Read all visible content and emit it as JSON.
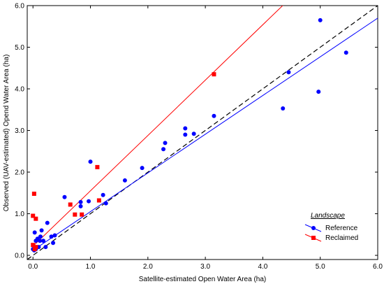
{
  "chart_data": {
    "type": "scatter",
    "xlabel": "Satellite-estimated Open Water Area (ha)",
    "ylabel": "Observed (UAV-estimated) Opend Water Area (ha)",
    "xlim": [
      -0.1,
      6.0
    ],
    "ylim": [
      -0.1,
      6.0
    ],
    "x_ticks": [
      "0.0",
      "1.0",
      "2.0",
      "3.0",
      "4.0",
      "5.0",
      "6.0"
    ],
    "y_ticks": [
      "0.0",
      "1.0",
      "2.0",
      "3.0",
      "4.0",
      "5.0",
      "6.0"
    ],
    "x_tick_values": [
      0,
      1,
      2,
      3,
      4,
      5,
      6
    ],
    "y_tick_values": [
      0,
      1,
      2,
      3,
      4,
      5,
      6
    ],
    "legend": {
      "title": "Landscape",
      "position": "bottom-right"
    },
    "series": [
      {
        "name": "Reference",
        "color": "#0000ff",
        "marker": "circle",
        "fit": {
          "intercept": 0.12,
          "slope": 0.93
        },
        "points": [
          [
            0.0,
            0.15
          ],
          [
            0.02,
            0.12
          ],
          [
            0.03,
            0.2
          ],
          [
            0.03,
            0.55
          ],
          [
            0.05,
            0.35
          ],
          [
            0.05,
            0.15
          ],
          [
            0.08,
            0.4
          ],
          [
            0.1,
            0.2
          ],
          [
            0.12,
            0.35
          ],
          [
            0.13,
            0.45
          ],
          [
            0.15,
            0.6
          ],
          [
            0.18,
            0.35
          ],
          [
            0.22,
            0.2
          ],
          [
            0.25,
            0.78
          ],
          [
            0.32,
            0.45
          ],
          [
            0.35,
            0.3
          ],
          [
            0.38,
            0.48
          ],
          [
            0.55,
            1.4
          ],
          [
            0.83,
            1.28
          ],
          [
            0.83,
            1.18
          ],
          [
            0.97,
            1.3
          ],
          [
            1.0,
            2.25
          ],
          [
            1.22,
            1.45
          ],
          [
            1.27,
            1.25
          ],
          [
            1.6,
            1.8
          ],
          [
            1.9,
            2.1
          ],
          [
            2.27,
            2.55
          ],
          [
            2.3,
            2.7
          ],
          [
            2.65,
            2.9
          ],
          [
            2.65,
            3.05
          ],
          [
            2.8,
            2.92
          ],
          [
            3.15,
            3.35
          ],
          [
            4.35,
            3.53
          ],
          [
            4.45,
            4.4
          ],
          [
            4.97,
            3.93
          ],
          [
            5.0,
            5.65
          ],
          [
            5.45,
            4.87
          ]
        ]
      },
      {
        "name": "Reclaimed",
        "color": "#ff0000",
        "marker": "square",
        "fit": {
          "intercept": 0.22,
          "slope": 1.33
        },
        "points": [
          [
            0.0,
            0.95
          ],
          [
            0.0,
            0.25
          ],
          [
            0.02,
            1.48
          ],
          [
            0.03,
            0.15
          ],
          [
            0.05,
            0.88
          ],
          [
            0.05,
            0.2
          ],
          [
            0.65,
            1.22
          ],
          [
            0.73,
            0.98
          ],
          [
            0.85,
            0.98
          ],
          [
            1.12,
            2.12
          ],
          [
            1.15,
            1.32
          ],
          [
            3.15,
            4.35
          ]
        ]
      }
    ],
    "identity_line": {
      "style": "dashed",
      "color": "#000000"
    }
  }
}
